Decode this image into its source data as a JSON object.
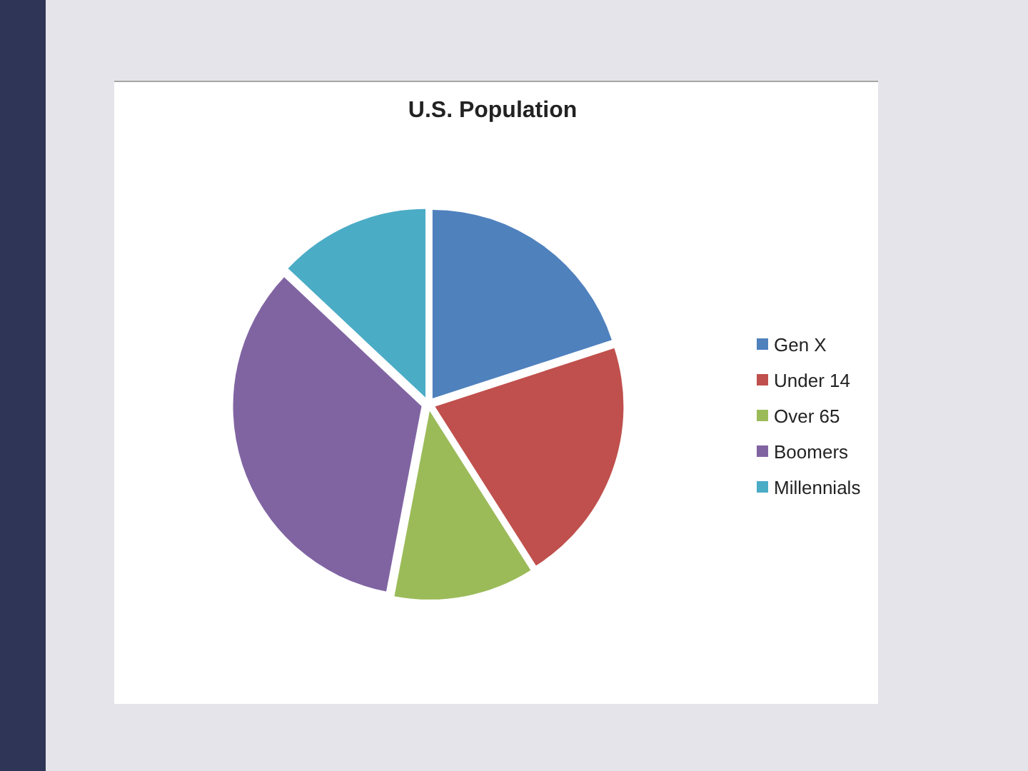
{
  "chart_data": {
    "type": "pie",
    "title": "U.S. Population",
    "categories": [
      "Gen X",
      "Under 14",
      "Over 65",
      "Boomers",
      "Millennials"
    ],
    "values": [
      20,
      21,
      12,
      34,
      13
    ],
    "colors": [
      "#4f81bd",
      "#c0504d",
      "#9bbb59",
      "#8064a2",
      "#4bacc6"
    ],
    "legend": "right"
  }
}
